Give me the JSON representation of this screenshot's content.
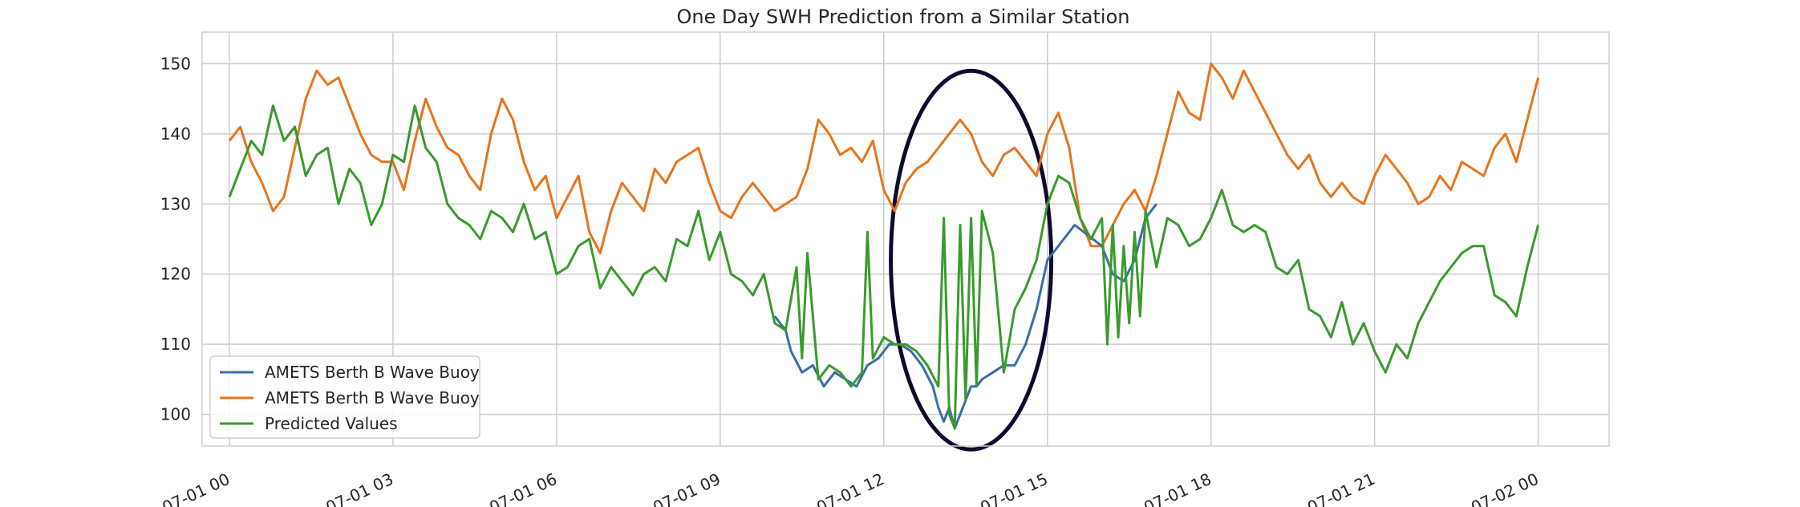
{
  "chart_data": {
    "type": "line",
    "title": "One Day SWH Prediction from a Similar Station",
    "xlabel": "",
    "ylabel": "",
    "x_tick_labels": [
      "07-01 00",
      "07-01 03",
      "07-01 06",
      "07-01 09",
      "07-01 12",
      "07-01 15",
      "07-01 18",
      "07-01 21",
      "07-02 00"
    ],
    "y_ticks": [
      100,
      110,
      120,
      130,
      140,
      150
    ],
    "xlim_hours": [
      -0.5,
      25.3
    ],
    "ylim": [
      95.5,
      154.5
    ],
    "grid": true,
    "legend_position": "lower-left",
    "colors": {
      "blue": "#3a6ea8",
      "orange": "#e8741c",
      "green": "#3a9a2e",
      "ellipse": "#0e0a2e",
      "grid": "#cccccc",
      "frame": "#d0d0d0"
    },
    "annotation": {
      "type": "ellipse",
      "x_hours": 13.6,
      "y_value": 122,
      "description": "highlighted region"
    },
    "series": [
      {
        "name": "AMETS Berth B Wave Buoy",
        "color": "#3a6ea8",
        "x_hours": [
          10.0,
          10.2,
          10.3,
          10.5,
          10.7,
          10.9,
          11.1,
          11.3,
          11.5,
          11.7,
          11.9,
          12.1,
          12.3,
          12.5,
          12.7,
          12.9,
          13.0,
          13.1,
          13.2,
          13.3,
          13.4,
          13.5,
          13.6,
          13.7,
          13.8,
          14.0,
          14.2,
          14.4,
          14.6,
          14.8,
          15.0,
          15.5,
          16.0,
          16.2,
          16.4,
          16.6,
          16.8,
          17.0
        ],
        "y": [
          114,
          112,
          109,
          106,
          107,
          104,
          106,
          105,
          104,
          107,
          108,
          110,
          110,
          109,
          107,
          104,
          101,
          99,
          101,
          98,
          100,
          102,
          104,
          104,
          105,
          106,
          107,
          107,
          110,
          115,
          122,
          127,
          124,
          120,
          119,
          122,
          128,
          130
        ]
      },
      {
        "name": "AMETS Berth B Wave Buoy",
        "color": "#e8741c",
        "x_hours": [
          0.0,
          0.2,
          0.4,
          0.6,
          0.8,
          1.0,
          1.2,
          1.4,
          1.6,
          1.8,
          2.0,
          2.2,
          2.4,
          2.6,
          2.8,
          3.0,
          3.2,
          3.4,
          3.6,
          3.8,
          4.0,
          4.2,
          4.4,
          4.6,
          4.8,
          5.0,
          5.2,
          5.4,
          5.6,
          5.8,
          6.0,
          6.2,
          6.4,
          6.6,
          6.8,
          7.0,
          7.2,
          7.4,
          7.6,
          7.8,
          8.0,
          8.2,
          8.4,
          8.6,
          8.8,
          9.0,
          9.2,
          9.4,
          9.6,
          9.8,
          10.0,
          10.2,
          10.4,
          10.6,
          10.8,
          11.0,
          11.2,
          11.4,
          11.6,
          11.8,
          12.0,
          12.2,
          12.4,
          12.6,
          12.8,
          13.0,
          13.2,
          13.4,
          13.6,
          13.8,
          14.0,
          14.2,
          14.4,
          14.6,
          14.8,
          15.0,
          15.2,
          15.4,
          15.6,
          15.8,
          16.0,
          16.2,
          16.4,
          16.6,
          16.8,
          17.0,
          17.2,
          17.4,
          17.6,
          17.8,
          18.0,
          18.2,
          18.4,
          18.6,
          18.8,
          19.0,
          19.2,
          19.4,
          19.6,
          19.8,
          20.0,
          20.2,
          20.4,
          20.6,
          20.8,
          21.0,
          21.2,
          21.4,
          21.6,
          21.8,
          22.0,
          22.2,
          22.4,
          22.6,
          22.8,
          23.0,
          23.2,
          23.4,
          23.6,
          23.8,
          24.0
        ],
        "y": [
          139,
          141,
          136,
          133,
          129,
          131,
          138,
          145,
          149,
          147,
          148,
          144,
          140,
          137,
          136,
          136,
          132,
          139,
          145,
          141,
          138,
          137,
          134,
          132,
          140,
          145,
          142,
          136,
          132,
          134,
          128,
          131,
          134,
          126,
          123,
          129,
          133,
          131,
          129,
          135,
          133,
          136,
          137,
          138,
          133,
          129,
          128,
          131,
          133,
          131,
          129,
          130,
          131,
          135,
          142,
          140,
          137,
          138,
          136,
          139,
          132,
          129,
          133,
          135,
          136,
          138,
          140,
          142,
          140,
          136,
          134,
          137,
          138,
          136,
          134,
          140,
          143,
          138,
          128,
          124,
          124,
          127,
          130,
          132,
          129,
          134,
          140,
          146,
          143,
          142,
          150,
          148,
          145,
          149,
          146,
          143,
          140,
          137,
          135,
          137,
          133,
          131,
          133,
          131,
          130,
          134,
          137,
          135,
          133,
          130,
          131,
          134,
          132,
          136,
          135,
          134,
          138,
          140,
          136,
          142,
          148
        ]
      },
      {
        "name": "Predicted Values",
        "color": "#3a9a2e",
        "x_hours": [
          0.0,
          0.2,
          0.4,
          0.6,
          0.8,
          1.0,
          1.2,
          1.4,
          1.6,
          1.8,
          2.0,
          2.2,
          2.4,
          2.6,
          2.8,
          3.0,
          3.2,
          3.4,
          3.6,
          3.8,
          4.0,
          4.2,
          4.4,
          4.6,
          4.8,
          5.0,
          5.2,
          5.4,
          5.6,
          5.8,
          6.0,
          6.2,
          6.4,
          6.6,
          6.8,
          7.0,
          7.2,
          7.4,
          7.6,
          7.8,
          8.0,
          8.2,
          8.4,
          8.6,
          8.8,
          9.0,
          9.2,
          9.4,
          9.6,
          9.8,
          10.0,
          10.2,
          10.4,
          10.5,
          10.6,
          10.8,
          11.0,
          11.2,
          11.4,
          11.6,
          11.7,
          11.8,
          12.0,
          12.2,
          12.4,
          12.6,
          12.8,
          13.0,
          13.1,
          13.2,
          13.3,
          13.4,
          13.5,
          13.6,
          13.7,
          13.8,
          14.0,
          14.2,
          14.4,
          14.6,
          14.8,
          15.0,
          15.2,
          15.4,
          15.6,
          15.8,
          16.0,
          16.1,
          16.2,
          16.3,
          16.4,
          16.5,
          16.6,
          16.7,
          16.8,
          17.0,
          17.2,
          17.4,
          17.6,
          17.8,
          18.0,
          18.2,
          18.4,
          18.6,
          18.8,
          19.0,
          19.2,
          19.4,
          19.6,
          19.8,
          20.0,
          20.2,
          20.4,
          20.6,
          20.8,
          21.0,
          21.2,
          21.4,
          21.6,
          21.8,
          22.0,
          22.2,
          22.4,
          22.6,
          22.8,
          23.0,
          23.2,
          23.4,
          23.6,
          23.8,
          24.0
        ],
        "y": [
          131,
          135,
          139,
          137,
          144,
          139,
          141,
          134,
          137,
          138,
          130,
          135,
          133,
          127,
          130,
          137,
          136,
          144,
          138,
          136,
          130,
          128,
          127,
          125,
          129,
          128,
          126,
          130,
          125,
          126,
          120,
          121,
          124,
          125,
          118,
          121,
          119,
          117,
          120,
          121,
          119,
          125,
          124,
          129,
          122,
          126,
          120,
          119,
          117,
          120,
          113,
          112,
          121,
          108,
          123,
          105,
          107,
          106,
          104,
          106,
          126,
          108,
          111,
          110,
          110,
          109,
          107,
          104,
          128,
          100,
          98,
          127,
          102,
          128,
          104,
          129,
          123,
          106,
          115,
          118,
          122,
          130,
          134,
          133,
          128,
          125,
          128,
          110,
          127,
          111,
          124,
          113,
          126,
          114,
          129,
          121,
          128,
          127,
          124,
          125,
          128,
          132,
          127,
          126,
          127,
          126,
          121,
          120,
          122,
          115,
          114,
          111,
          116,
          110,
          113,
          109,
          106,
          110,
          108,
          113,
          116,
          119,
          121,
          123,
          124,
          124,
          117,
          116,
          114,
          121,
          127
        ]
      }
    ]
  }
}
